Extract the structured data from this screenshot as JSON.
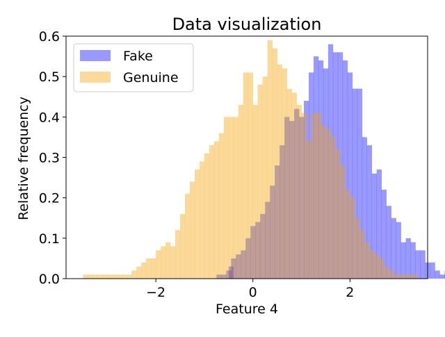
{
  "chart_data": {
    "type": "histogram",
    "title": "Data visualization",
    "xlabel": "Feature 4",
    "ylabel": "Relative frequency",
    "xlim": [
      -3.85,
      3.6
    ],
    "ylim": [
      0,
      0.6
    ],
    "xticks": [
      -2,
      0,
      2
    ],
    "xtick_labels": [
      "−2",
      "0",
      "2"
    ],
    "yticks": [
      0.0,
      0.1,
      0.2,
      0.3,
      0.4,
      0.5,
      0.6
    ],
    "ytick_labels": [
      "0.0",
      "0.1",
      "0.2",
      "0.3",
      "0.4",
      "0.5",
      "0.6"
    ],
    "grid": false,
    "legend": {
      "position": "top-left"
    },
    "series": [
      {
        "name": "Fake",
        "color": "#0000ff",
        "alpha": 0.4,
        "bins_start": -0.75,
        "bin_width": 0.1,
        "values": [
          0.01,
          0.01,
          0.02,
          0.05,
          0.06,
          0.07,
          0.1,
          0.13,
          0.14,
          0.16,
          0.19,
          0.23,
          0.28,
          0.33,
          0.4,
          0.39,
          0.42,
          0.4,
          0.44,
          0.51,
          0.55,
          0.54,
          0.52,
          0.58,
          0.56,
          0.56,
          0.54,
          0.51,
          0.47,
          0.47,
          0.35,
          0.33,
          0.26,
          0.27,
          0.22,
          0.18,
          0.15,
          0.14,
          0.09,
          0.1,
          0.09,
          0.07,
          0.07,
          0.04,
          0.04,
          0.02,
          0.01,
          0.02,
          0.01,
          0.01,
          0.01,
          0.0,
          0.0,
          0.0,
          0.0,
          0.01
        ],
        "extra_bins": [
          {
            "start": -0.5,
            "value": 0.03
          }
        ]
      },
      {
        "name": "Genuine",
        "color": "#f5a300",
        "alpha": 0.4,
        "bins_start": -3.5,
        "bin_width": 0.1,
        "values": [
          0.01,
          0.01,
          0.01,
          0.01,
          0.01,
          0.01,
          0.01,
          0.01,
          0.01,
          0.01,
          0.02,
          0.03,
          0.04,
          0.05,
          0.05,
          0.07,
          0.08,
          0.09,
          0.08,
          0.12,
          0.16,
          0.21,
          0.24,
          0.27,
          0.29,
          0.31,
          0.33,
          0.34,
          0.36,
          0.4,
          0.4,
          0.4,
          0.43,
          0.51,
          0.51,
          0.43,
          0.48,
          0.5,
          0.59,
          0.57,
          0.53,
          0.52,
          0.47,
          0.46,
          0.43,
          0.41,
          0.34,
          0.41,
          0.41,
          0.38,
          0.37,
          0.35,
          0.32,
          0.28,
          0.22,
          0.2,
          0.15,
          0.12,
          0.09,
          0.07,
          0.06,
          0.05,
          0.03,
          0.02,
          0.01,
          0.01,
          0.01,
          0.01,
          0.01,
          0.0,
          0.0,
          0.0,
          0.0,
          0.0,
          0.0
        ]
      }
    ]
  }
}
